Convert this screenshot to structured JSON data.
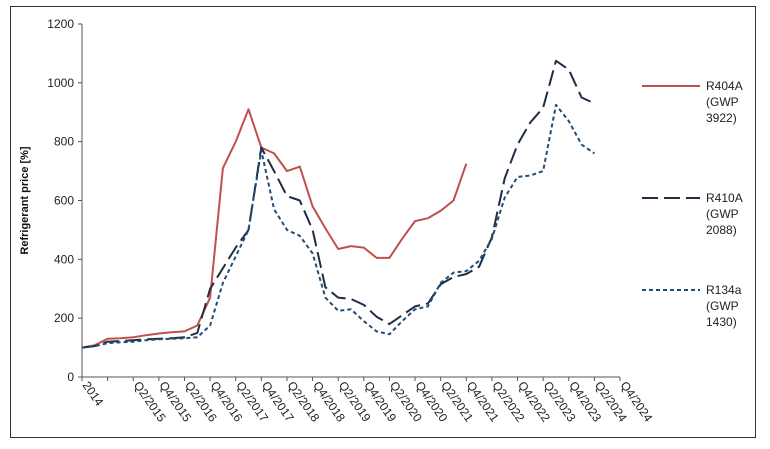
{
  "chart_data": {
    "type": "line",
    "ylabel": "Refrigerant price [%]",
    "xlabel": "",
    "ylim": [
      0,
      1200
    ],
    "yticks": [
      0,
      200,
      400,
      600,
      800,
      1000,
      1200
    ],
    "grid": false,
    "legend_position": "right",
    "x_count": 43,
    "xtick_labels": [
      {
        "i": 0,
        "label": "2014"
      },
      {
        "i": 4,
        "label": "Q2/2015"
      },
      {
        "i": 6,
        "label": "Q4/2015"
      },
      {
        "i": 8,
        "label": "Q2/2016"
      },
      {
        "i": 10,
        "label": "Q4/2016"
      },
      {
        "i": 12,
        "label": "Q2/2017"
      },
      {
        "i": 14,
        "label": "Q4/2017"
      },
      {
        "i": 16,
        "label": "Q2/2018"
      },
      {
        "i": 18,
        "label": "Q4/2018"
      },
      {
        "i": 20,
        "label": "Q2/2019"
      },
      {
        "i": 22,
        "label": "Q4/2019"
      },
      {
        "i": 24,
        "label": "Q2/2020"
      },
      {
        "i": 26,
        "label": "Q4/2020"
      },
      {
        "i": 28,
        "label": "Q2/2021"
      },
      {
        "i": 30,
        "label": "Q4/2021"
      },
      {
        "i": 32,
        "label": "Q2/2022"
      },
      {
        "i": 34,
        "label": "Q4/2022"
      },
      {
        "i": 36,
        "label": "Q2/2023"
      },
      {
        "i": 38,
        "label": "Q4/2023"
      },
      {
        "i": 40,
        "label": "Q2/2024"
      },
      {
        "i": 42,
        "label": "Q4/2024"
      }
    ],
    "series": [
      {
        "name": "R404A",
        "legend_lines": [
          "R404A",
          "(GWP",
          "3922)"
        ],
        "color": "#c0504d",
        "dash": "solid",
        "values": [
          100,
          108,
          130,
          132,
          135,
          142,
          148,
          152,
          155,
          175,
          270,
          710,
          800,
          910,
          780,
          760,
          700,
          715,
          580,
          505,
          435,
          445,
          440,
          405,
          405,
          470,
          530,
          540,
          565,
          600,
          725
        ]
      },
      {
        "name": "R410A",
        "legend_lines": [
          "R410A",
          "(GWP",
          "2088)"
        ],
        "color": "#1f2d45",
        "dash": "longdash",
        "values": [
          100,
          105,
          120,
          122,
          125,
          128,
          130,
          132,
          135,
          150,
          300,
          370,
          440,
          500,
          780,
          700,
          615,
          600,
          500,
          305,
          270,
          265,
          245,
          205,
          180,
          210,
          240,
          250,
          315,
          340,
          350,
          375,
          475,
          675,
          790,
          865,
          915,
          1075,
          1045,
          950,
          930
        ]
      },
      {
        "name": "R134a",
        "legend_lines": [
          "R134a",
          "(GWP",
          "1430)"
        ],
        "color": "#1f4e79",
        "dash": "dotted",
        "values": [
          100,
          105,
          115,
          118,
          120,
          125,
          128,
          130,
          132,
          135,
          175,
          320,
          410,
          500,
          770,
          570,
          500,
          480,
          420,
          270,
          225,
          230,
          190,
          155,
          145,
          190,
          230,
          240,
          320,
          355,
          360,
          395,
          470,
          610,
          680,
          685,
          700,
          925,
          870,
          790,
          760
        ]
      }
    ]
  }
}
